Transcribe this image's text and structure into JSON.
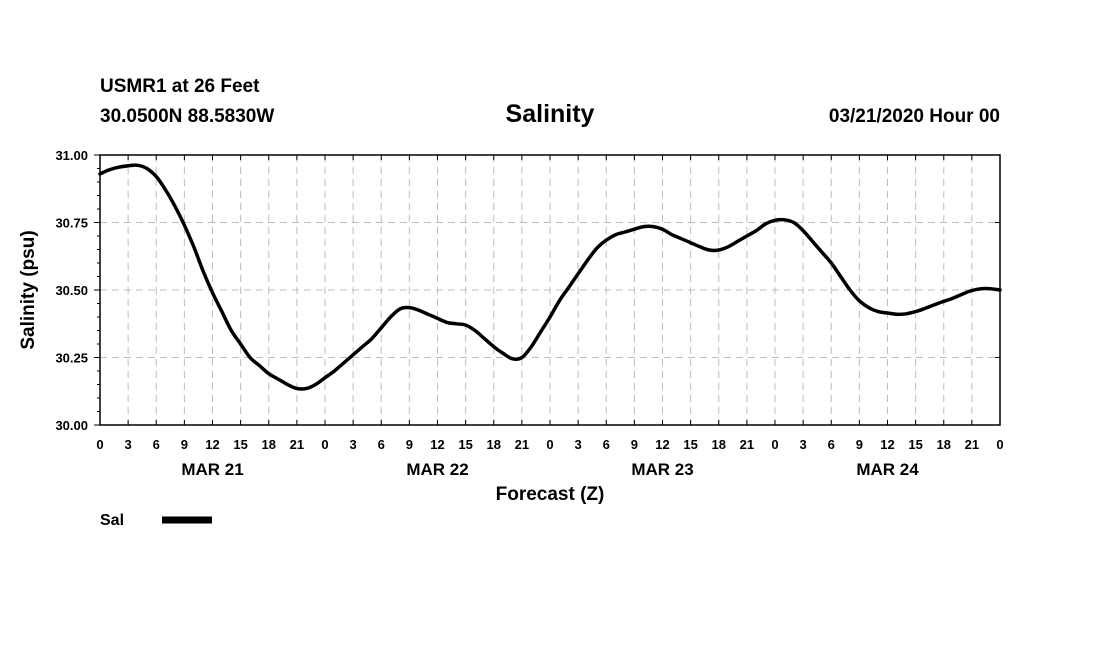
{
  "header": {
    "station": "USMR1 at 26 Feet",
    "coords": "30.0500N 88.5830W",
    "datetime": "03/21/2020 Hour 00"
  },
  "chart_data": {
    "type": "line",
    "title": "Salinity",
    "xlabel": "Forecast (Z)",
    "ylabel": "Salinity (psu)",
    "ylim": [
      30.0,
      31.0
    ],
    "yticks": [
      "30.00",
      "30.25",
      "30.50",
      "30.75",
      "31.00"
    ],
    "ytick_values": [
      30.0,
      30.25,
      30.5,
      30.75,
      31.0
    ],
    "xlim": [
      0,
      96
    ],
    "xtick_labels": [
      "0",
      "3",
      "6",
      "9",
      "12",
      "15",
      "18",
      "21",
      "0",
      "3",
      "6",
      "9",
      "12",
      "15",
      "18",
      "21",
      "0",
      "3",
      "6",
      "9",
      "12",
      "15",
      "18",
      "21",
      "0",
      "3",
      "6",
      "9",
      "12",
      "15",
      "18",
      "21",
      "0"
    ],
    "day_labels": [
      {
        "label": "MAR 21",
        "center_hour": 12
      },
      {
        "label": "MAR 22",
        "center_hour": 36
      },
      {
        "label": "MAR 23",
        "center_hour": 60
      },
      {
        "label": "MAR 24",
        "center_hour": 84
      }
    ],
    "grid": true,
    "series": [
      {
        "name": "Sal",
        "color": "#000000",
        "x": [
          0,
          1,
          2,
          3,
          4,
          5,
          6,
          7,
          8,
          9,
          10,
          11,
          12,
          13,
          14,
          15,
          16,
          17,
          18,
          19,
          20,
          21,
          22,
          23,
          24,
          25,
          26,
          27,
          28,
          29,
          30,
          31,
          32,
          33,
          34,
          35,
          36,
          37,
          38,
          39,
          40,
          41,
          42,
          43,
          44,
          45,
          46,
          47,
          48,
          49,
          50,
          51,
          52,
          53,
          54,
          55,
          56,
          57,
          58,
          59,
          60,
          61,
          62,
          63,
          64,
          65,
          66,
          67,
          68,
          69,
          70,
          71,
          72,
          73,
          74,
          75,
          76,
          77,
          78,
          79,
          80,
          81,
          82,
          83,
          84,
          85,
          86,
          87,
          88,
          89,
          90,
          91,
          92,
          93,
          94,
          95,
          96
        ],
        "values": [
          30.93,
          30.945,
          30.955,
          30.96,
          30.962,
          30.95,
          30.92,
          30.87,
          30.81,
          30.74,
          30.66,
          30.57,
          30.49,
          30.42,
          30.35,
          30.3,
          30.25,
          30.22,
          30.19,
          30.17,
          30.15,
          30.135,
          30.135,
          30.15,
          30.175,
          30.2,
          30.23,
          30.26,
          30.29,
          30.32,
          30.36,
          30.4,
          30.43,
          30.435,
          30.425,
          30.41,
          30.395,
          30.38,
          30.375,
          30.37,
          30.35,
          30.32,
          30.29,
          30.265,
          30.245,
          30.25,
          30.29,
          30.345,
          30.4,
          30.46,
          30.51,
          30.56,
          30.61,
          30.655,
          30.685,
          30.705,
          30.715,
          30.725,
          30.735,
          30.735,
          30.725,
          30.705,
          30.69,
          30.675,
          30.66,
          30.648,
          30.648,
          30.66,
          30.68,
          30.7,
          30.72,
          30.745,
          30.758,
          30.76,
          30.75,
          30.72,
          30.68,
          30.64,
          30.6,
          30.55,
          30.5,
          30.46,
          30.435,
          30.42,
          30.415,
          30.41,
          30.412,
          30.42,
          30.432,
          30.445,
          30.458,
          30.47,
          30.485,
          30.498,
          30.505,
          30.505,
          30.5
        ]
      }
    ],
    "legend": [
      {
        "label": "Sal",
        "style": "thick-solid-black"
      }
    ]
  }
}
